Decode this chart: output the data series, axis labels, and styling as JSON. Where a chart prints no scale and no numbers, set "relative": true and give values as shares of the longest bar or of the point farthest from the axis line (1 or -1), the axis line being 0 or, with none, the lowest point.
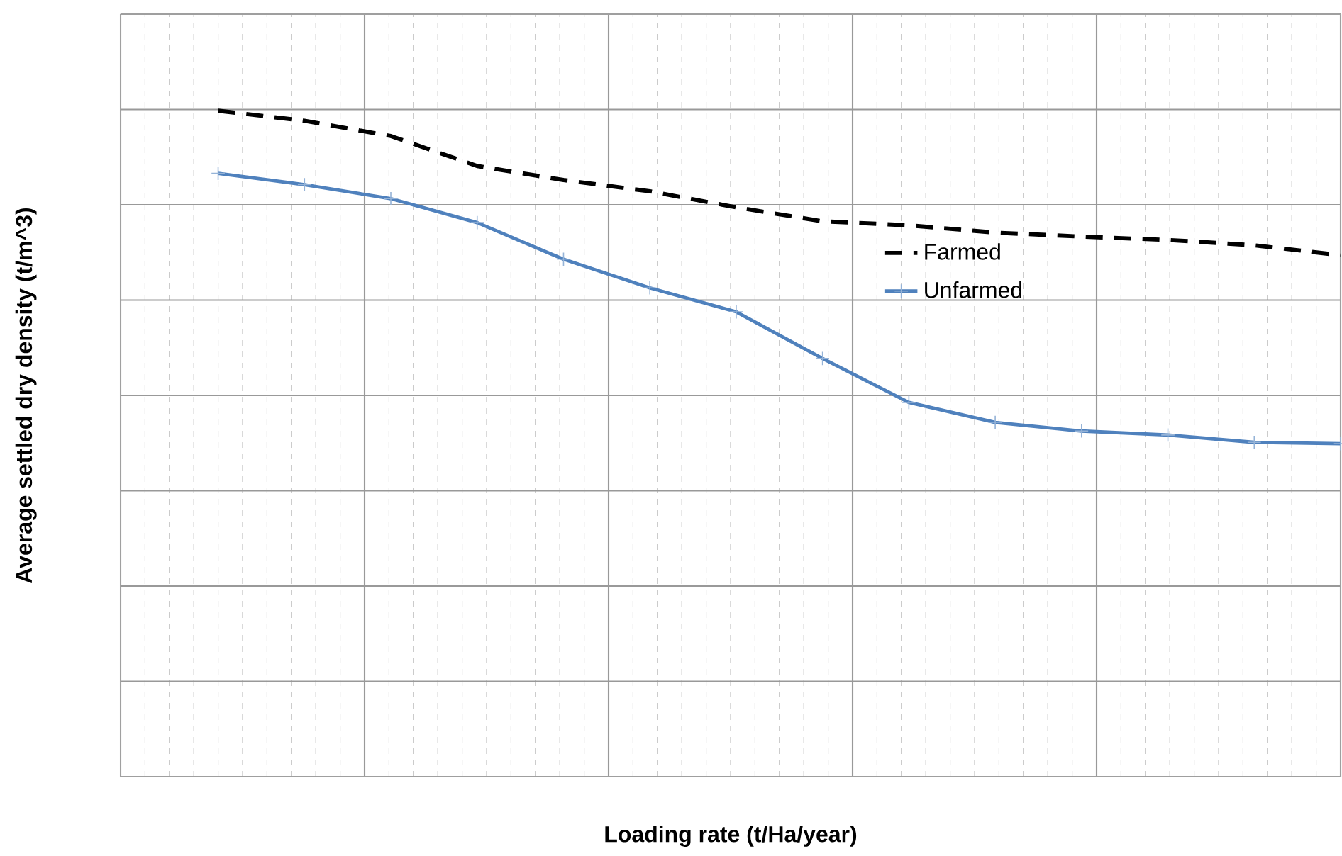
{
  "chart_data": {
    "type": "line",
    "relative": true,
    "xlabel": "Loading rate (t/Ha/year)",
    "ylabel": "Average settled dry density (t/m^3)",
    "categories": [
      null,
      null,
      null,
      null,
      null,
      null,
      null,
      null,
      null,
      null,
      null,
      null,
      null,
      null
    ],
    "series": [
      {
        "name": "Farmed",
        "color": "#000000",
        "line_style": "dashed",
        "marker": "none",
        "values": [
          1,
          0.985,
          0.962,
          0.917,
          0.896,
          0.879,
          0.855,
          0.834,
          0.828,
          0.817,
          0.811,
          0.806,
          0.798,
          0.783
        ]
      },
      {
        "name": "Unfarmed",
        "color": "#4f81bd",
        "line_style": "solid",
        "marker": "cross",
        "values": [
          0.906,
          0.889,
          0.868,
          0.832,
          0.777,
          0.734,
          0.698,
          0.628,
          0.562,
          0.532,
          0.519,
          0.513,
          0.502,
          0.5
        ]
      }
    ],
    "grid": true,
    "legend": "right",
    "tick_labels": false
  }
}
